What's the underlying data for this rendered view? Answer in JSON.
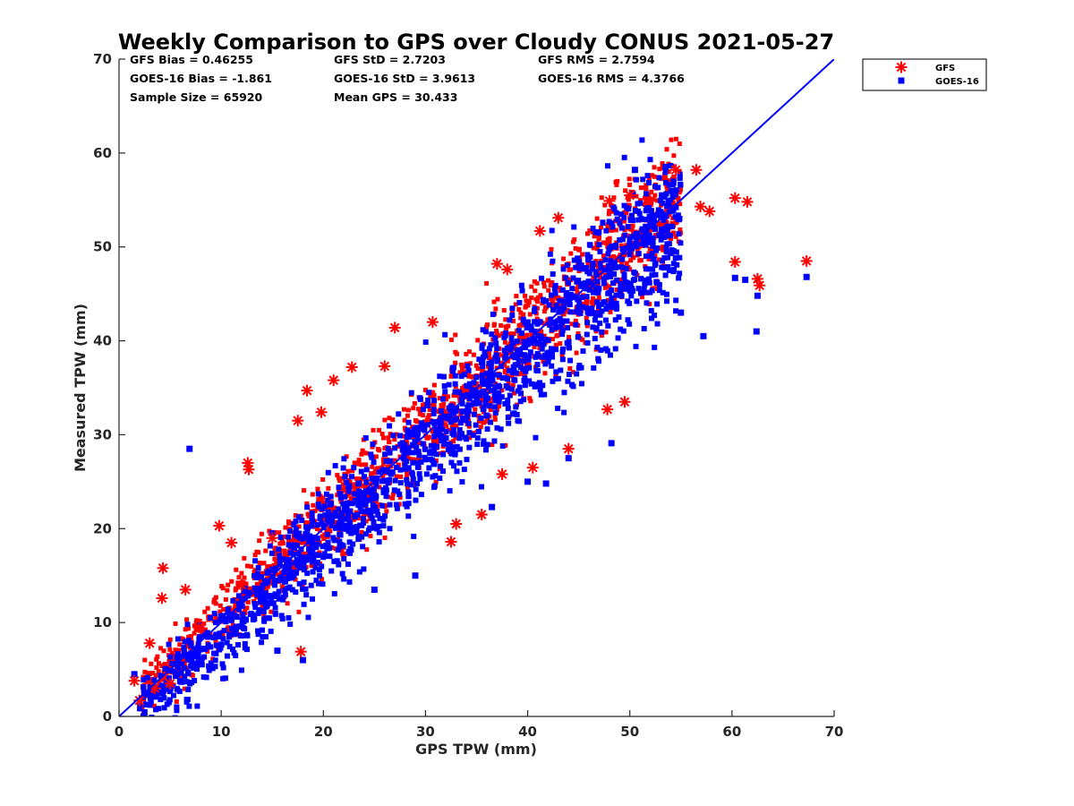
{
  "chart_data": {
    "type": "scatter",
    "title": "Weekly Comparison to GPS over Cloudy CONUS 2021-05-27",
    "xlabel": "GPS TPW (mm)",
    "ylabel": "Measured TPW (mm)",
    "xlim": [
      0,
      70
    ],
    "ylim": [
      0,
      70
    ],
    "xticks": [
      "0",
      "10",
      "20",
      "30",
      "40",
      "50",
      "60",
      "70"
    ],
    "yticks": [
      "0",
      "10",
      "20",
      "30",
      "40",
      "50",
      "60",
      "70"
    ],
    "grid": false,
    "legend_position": "outside-top-right",
    "stats": [
      [
        "GFS Bias = 0.46255",
        "GFS StD = 2.7203",
        "GFS RMS = 2.7594"
      ],
      [
        "GOES-16 Bias = -1.861",
        "GOES-16 StD = 3.9613",
        "GOES-16 RMS = 4.3766"
      ],
      [
        "Sample Size = 65920",
        "Mean GPS = 30.433"
      ]
    ],
    "series": [
      {
        "name": "GFS",
        "marker": "asterisk",
        "color": "#ff0000",
        "points": [
          [
            1.5,
            3.8
          ],
          [
            2.0,
            1.7
          ],
          [
            3.0,
            7.8
          ],
          [
            4.2,
            12.6
          ],
          [
            4.3,
            15.8
          ],
          [
            6.5,
            13.5
          ],
          [
            9.8,
            20.3
          ],
          [
            11.0,
            18.5
          ],
          [
            12.6,
            27.0
          ],
          [
            12.7,
            26.3
          ],
          [
            17.5,
            31.5
          ],
          [
            18.4,
            34.7
          ],
          [
            19.8,
            32.4
          ],
          [
            21.0,
            35.8
          ],
          [
            22.8,
            37.2
          ],
          [
            26.0,
            37.3
          ],
          [
            27.0,
            41.4
          ],
          [
            30.7,
            42.0
          ],
          [
            37.0,
            48.2
          ],
          [
            38.0,
            47.6
          ],
          [
            41.2,
            51.7
          ],
          [
            43.0,
            53.1
          ],
          [
            48.0,
            54.9
          ],
          [
            50.0,
            55.5
          ],
          [
            54.5,
            58.2
          ],
          [
            56.5,
            58.2
          ],
          [
            56.9,
            54.3
          ],
          [
            57.8,
            53.8
          ],
          [
            60.3,
            48.4
          ],
          [
            60.3,
            55.2
          ],
          [
            61.5,
            54.8
          ],
          [
            62.5,
            46.6
          ],
          [
            62.7,
            45.9
          ],
          [
            67.3,
            48.5
          ],
          [
            37.5,
            25.8
          ],
          [
            35.5,
            21.5
          ],
          [
            32.5,
            18.6
          ],
          [
            33.0,
            20.5
          ],
          [
            40.5,
            26.5
          ],
          [
            44.0,
            28.5
          ],
          [
            47.8,
            32.7
          ],
          [
            49.5,
            33.5
          ],
          [
            17.8,
            6.9
          ],
          [
            5.0,
            3.5
          ],
          [
            3.5,
            3.0
          ],
          [
            7.8,
            9.5
          ],
          [
            12.0,
            14.0
          ],
          [
            15.0,
            19.0
          ]
        ]
      },
      {
        "name": "GOES-16",
        "marker": "square",
        "color": "#0000ff",
        "points": [
          [
            6.9,
            28.5
          ],
          [
            22.5,
            24.5
          ],
          [
            29.0,
            15.0
          ],
          [
            36.5,
            22.3
          ],
          [
            41.8,
            24.8
          ],
          [
            48.2,
            29.1
          ],
          [
            60.3,
            46.7
          ],
          [
            61.3,
            46.5
          ],
          [
            62.4,
            41.0
          ],
          [
            62.5,
            44.8
          ],
          [
            67.3,
            46.8
          ],
          [
            53.5,
            58.5
          ],
          [
            50.5,
            58.2
          ],
          [
            57.2,
            40.5
          ],
          [
            55.0,
            43.0
          ],
          [
            18.0,
            6.0
          ],
          [
            1.5,
            4.5
          ],
          [
            44.0,
            27.5
          ],
          [
            40.0,
            25.0
          ],
          [
            25.0,
            13.5
          ],
          [
            15.5,
            7.0
          ]
        ]
      }
    ],
    "reference_line": {
      "x": [
        0,
        70
      ],
      "y": [
        0,
        70
      ],
      "color": "#0000ff"
    }
  }
}
